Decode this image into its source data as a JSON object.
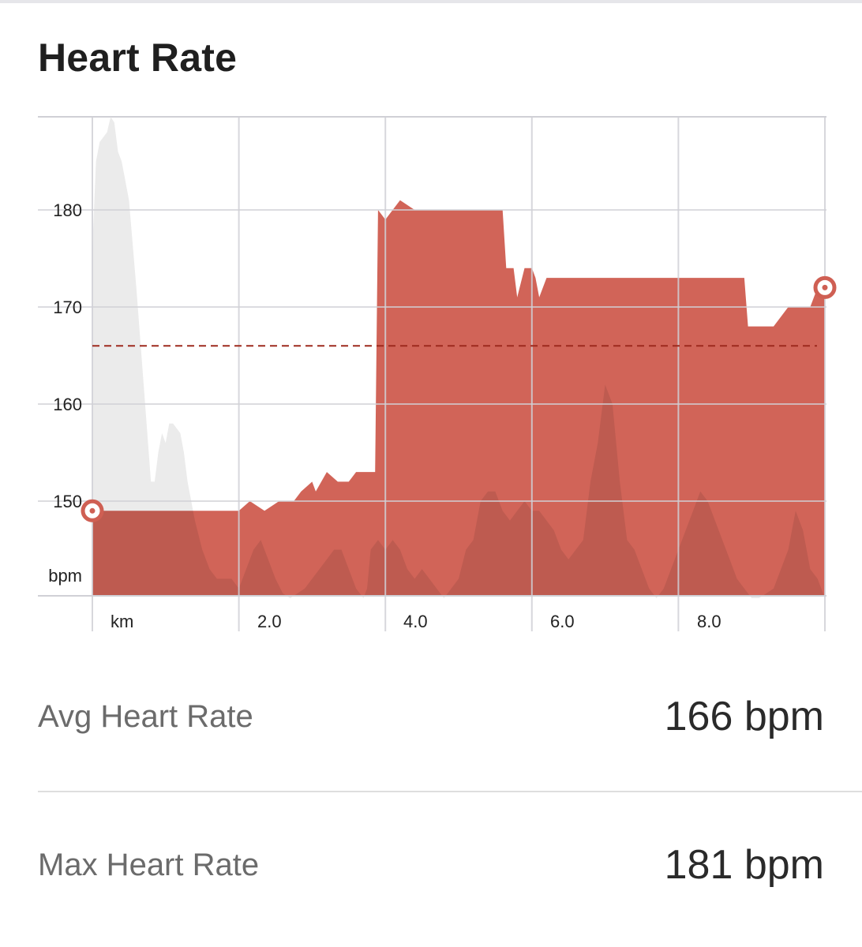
{
  "title": "Heart Rate",
  "chart_data": {
    "type": "area",
    "ylabel": "bpm",
    "xlabel": "km",
    "x_range": [
      0,
      10
    ],
    "y_range": [
      140,
      190
    ],
    "y_ticks": [
      150,
      160,
      170,
      180
    ],
    "y_tick_labels": [
      "150",
      "160",
      "170",
      "180"
    ],
    "x_ticks": [
      2,
      4,
      6,
      8
    ],
    "x_tick_labels": [
      "2.0",
      "4.0",
      "6.0",
      "8.0"
    ],
    "average": 166,
    "series": [
      {
        "name": "heart_rate",
        "color": "#cf5f53",
        "x": [
          0,
          2.0,
          2.15,
          2.35,
          2.55,
          2.75,
          2.85,
          3.0,
          3.05,
          3.2,
          3.35,
          3.5,
          3.6,
          3.7,
          3.8,
          3.85,
          3.86,
          3.9,
          4.0,
          4.2,
          4.4,
          4.5,
          4.7,
          5.5,
          5.6,
          5.65,
          5.75,
          5.8,
          5.9,
          6.0,
          6.05,
          6.1,
          6.2,
          6.4,
          6.7,
          6.9,
          7.3,
          7.7,
          8.0,
          8.2,
          8.5,
          8.9,
          8.95,
          9.2,
          9.3,
          9.5,
          9.65,
          9.8,
          9.9,
          10.0
        ],
        "y": [
          149,
          149,
          150,
          149,
          150,
          150,
          151,
          152,
          151,
          153,
          152,
          152,
          153,
          153,
          153,
          153,
          153,
          180,
          179,
          181,
          180,
          180,
          180,
          180,
          180,
          174,
          174,
          171,
          174,
          174,
          173,
          171,
          173,
          173,
          173,
          173,
          173,
          173,
          173,
          173,
          173,
          173,
          168,
          168,
          168,
          170,
          170,
          170,
          172,
          172
        ]
      },
      {
        "name": "elevation",
        "color": "#ebebeb",
        "x": [
          0,
          0.05,
          0.1,
          0.2,
          0.25,
          0.3,
          0.35,
          0.4,
          0.45,
          0.5,
          0.6,
          0.7,
          0.75,
          0.8,
          0.85,
          0.9,
          0.95,
          1.0,
          1.05,
          1.1,
          1.2,
          1.25,
          1.3,
          1.4,
          1.5,
          1.6,
          1.7,
          1.8,
          1.9,
          2.0,
          2.1,
          2.2,
          2.3,
          2.4,
          2.5,
          2.6,
          2.7,
          2.8,
          2.9,
          3.0,
          3.1,
          3.2,
          3.3,
          3.4,
          3.5,
          3.6,
          3.7,
          3.75,
          3.8,
          3.9,
          4.0,
          4.1,
          4.2,
          4.3,
          4.4,
          4.5,
          4.6,
          4.7,
          4.8,
          4.9,
          5.0,
          5.1,
          5.2,
          5.3,
          5.4,
          5.5,
          5.6,
          5.7,
          5.8,
          5.9,
          6.0,
          6.1,
          6.2,
          6.3,
          6.4,
          6.5,
          6.6,
          6.7,
          6.8,
          6.9,
          7.0,
          7.1,
          7.2,
          7.3,
          7.4,
          7.5,
          7.6,
          7.7,
          7.8,
          7.9,
          8.0,
          8.1,
          8.2,
          8.3,
          8.4,
          8.5,
          8.6,
          8.7,
          8.8,
          8.9,
          9.0,
          9.1,
          9.2,
          9.3,
          9.4,
          9.5,
          9.6,
          9.7,
          9.8,
          9.9,
          10.0
        ],
        "y": [
          176,
          185,
          187,
          188,
          190,
          189,
          186,
          185,
          183,
          181,
          172,
          162,
          157,
          152,
          152,
          155,
          157,
          156,
          158,
          158,
          157,
          155,
          152,
          148,
          145,
          143,
          142,
          142,
          142,
          141,
          143,
          145,
          146,
          144,
          142,
          140.5,
          140,
          140.5,
          141,
          142,
          143,
          144,
          145,
          145,
          143,
          141,
          140,
          141,
          145,
          146,
          145,
          146,
          145,
          143,
          142,
          143,
          142,
          141,
          140,
          141,
          142,
          145,
          146,
          150,
          151,
          151,
          149,
          148,
          149,
          150,
          149,
          149,
          148,
          147,
          145,
          144,
          145,
          146,
          152,
          156,
          162,
          160,
          152,
          146,
          145,
          143,
          141,
          140,
          141,
          143,
          145,
          147,
          149,
          151,
          150,
          148,
          146,
          144,
          142,
          141,
          140,
          140,
          140.5,
          141,
          143,
          145,
          149,
          147,
          143,
          142,
          140
        ],
        "note": "grey background profile, values in chart y units"
      }
    ]
  },
  "stats": [
    {
      "label": "Avg Heart Rate",
      "value": "166 bpm"
    },
    {
      "label": "Max Heart Rate",
      "value": "181 bpm"
    }
  ],
  "colors": {
    "accent": "#cf5f53",
    "avg_line": "#9e2a1e",
    "grid": "#d0d0d6",
    "elevation": "#ebebeb"
  }
}
